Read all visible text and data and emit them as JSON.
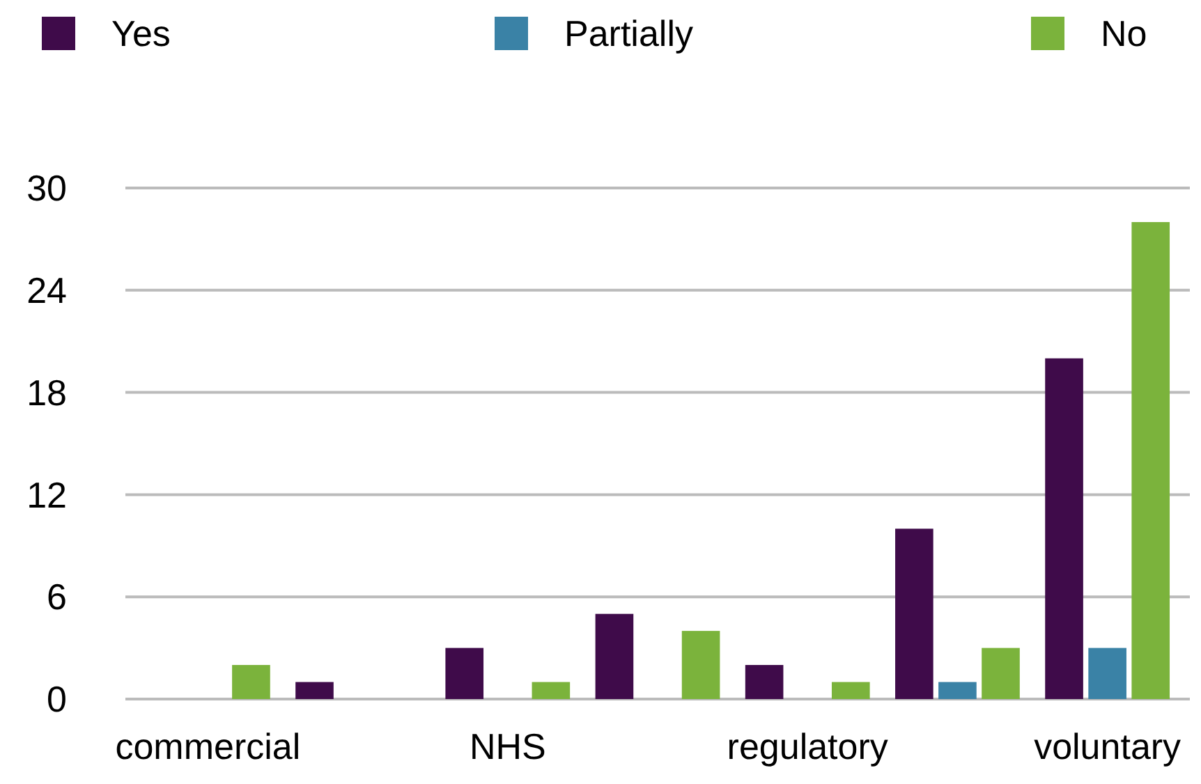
{
  "chart_data": {
    "type": "bar",
    "categories": [
      "commercial",
      null,
      "NHS",
      null,
      "regulatory",
      null,
      "voluntary"
    ],
    "series": [
      {
        "name": "Yes",
        "color": "#3f0b4a",
        "values": [
          0,
          1,
          3,
          5,
          2,
          10,
          20
        ]
      },
      {
        "name": "Partially",
        "color": "#3a82a6",
        "values": [
          0,
          0,
          0,
          0,
          0,
          1,
          3
        ]
      },
      {
        "name": "No",
        "color": "#7bb33c",
        "values": [
          2,
          0,
          1,
          4,
          1,
          3,
          28
        ]
      }
    ],
    "ylim": [
      0,
      30
    ],
    "yticks": [
      0,
      6,
      12,
      18,
      24,
      30
    ],
    "grid": "y",
    "legend": "top"
  }
}
